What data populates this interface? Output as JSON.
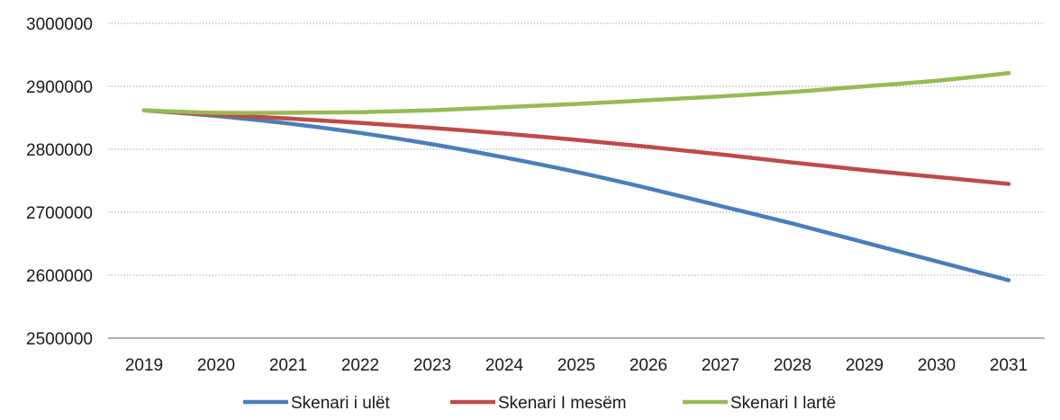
{
  "chart_data": {
    "type": "line",
    "title": "",
    "xlabel": "",
    "ylabel": "",
    "categories": [
      "2019",
      "2020",
      "2021",
      "2022",
      "2023",
      "2024",
      "2025",
      "2026",
      "2027",
      "2028",
      "2029",
      "2030",
      "2031"
    ],
    "ylim": [
      2500000,
      3000000
    ],
    "yticks": [
      "2500000",
      "2600000",
      "2700000",
      "2800000",
      "2900000",
      "3000000"
    ],
    "grid": true,
    "legend_position": "bottom",
    "series": [
      {
        "name": "Skenari i ulët",
        "color": "#4a7ebb",
        "values": [
          2862000,
          2853000,
          2841000,
          2826000,
          2808000,
          2787000,
          2764000,
          2738000,
          2710000,
          2682000,
          2652000,
          2622000,
          2592000
        ]
      },
      {
        "name": "Skenari I mesëm",
        "color": "#be4b48",
        "values": [
          2862000,
          2855000,
          2849000,
          2842000,
          2834000,
          2825000,
          2815000,
          2804000,
          2792000,
          2779000,
          2767000,
          2756000,
          2745000
        ]
      },
      {
        "name": "Skenari I lartë",
        "color": "#98b954",
        "values": [
          2862000,
          2858000,
          2858000,
          2859000,
          2862000,
          2867000,
          2872000,
          2878000,
          2884000,
          2891000,
          2900000,
          2909000,
          2921000
        ]
      }
    ]
  }
}
